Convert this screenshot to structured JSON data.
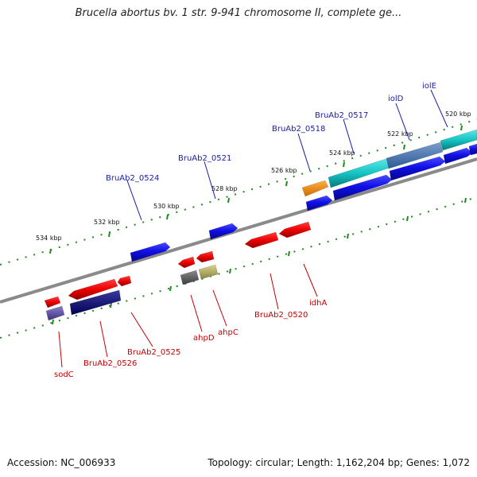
{
  "title": "Brucella abortus bv. 1 str. 9-941 chromosome II, complete ge...",
  "footer": {
    "accession": "Accession: NC_006933",
    "summary": "Topology: circular; Length: 1,162,204 bp; Genes: 1,072"
  },
  "colors": {
    "backbone": "#8a8a8a",
    "ticks": "#1e8a1e",
    "forward_label": "#1a1aa8",
    "reverse_label": "#c40000"
  },
  "scale_labels": [
    "534 kbp",
    "532 kbp",
    "530 kbp",
    "528 kbp",
    "526 kbp",
    "524 kbp",
    "522 kbp",
    "520 kbp"
  ],
  "forward_genes": [
    "BruAb2_0524",
    "BruAb2_0521",
    "BruAb2_0518",
    "BruAb2_0517",
    "iolD",
    "iolE"
  ],
  "reverse_genes": [
    "sodC",
    "BruAb2_0526",
    "BruAb2_0525",
    "ahpD",
    "ahpC",
    "BruAb2_0520",
    "idhA"
  ]
}
